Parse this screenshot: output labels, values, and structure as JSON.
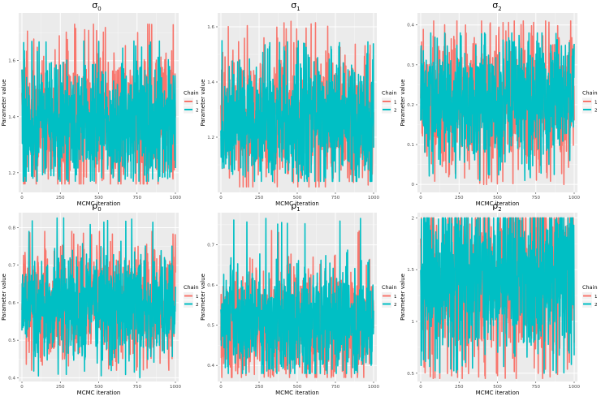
{
  "figure": {
    "legend_title": "Chain",
    "xlabel": "MCMC iteration",
    "ylabel": "Parameter value"
  },
  "chart_data": [
    {
      "type": "line",
      "title": "σ0",
      "title_base": "σ",
      "title_sub": "0",
      "xlabel": "MCMC iteration",
      "ylabel": "Parameter value",
      "x": [
        0,
        1000
      ],
      "xticks": [
        0,
        250,
        500,
        750,
        1000
      ],
      "yticks": [
        1.2,
        1.4,
        1.6
      ],
      "ylim": [
        1.13,
        1.77
      ],
      "mean": 1.39,
      "series": [
        {
          "name": "1",
          "color": "#F8766D",
          "center": 1.4,
          "spread": 0.11,
          "min": 1.16,
          "max": 1.73
        },
        {
          "name": "2",
          "color": "#00BFC4",
          "center": 1.38,
          "spread": 0.1,
          "min": 1.17,
          "max": 1.67
        }
      ]
    },
    {
      "type": "line",
      "title": "σ1",
      "title_base": "σ",
      "title_sub": "1",
      "xlabel": "MCMC iteration",
      "ylabel": "Parameter value",
      "x": [
        0,
        1000
      ],
      "xticks": [
        0,
        250,
        500,
        750,
        1000
      ],
      "yticks": [
        1.2,
        1.4,
        1.6
      ],
      "ylim": [
        1.0,
        1.65
      ],
      "mean": 1.27,
      "series": [
        {
          "name": "1",
          "color": "#F8766D",
          "center": 1.27,
          "spread": 0.11,
          "min": 1.02,
          "max": 1.62
        },
        {
          "name": "2",
          "color": "#00BFC4",
          "center": 1.26,
          "spread": 0.1,
          "min": 1.04,
          "max": 1.55
        }
      ]
    },
    {
      "type": "line",
      "title": "σ2",
      "title_base": "σ",
      "title_sub": "2",
      "xlabel": "MCMC iteration",
      "ylabel": "Parameter value",
      "x": [
        0,
        1000
      ],
      "xticks": [
        0,
        250,
        500,
        750,
        1000
      ],
      "yticks": [
        0.0,
        0.1,
        0.2,
        0.3,
        0.4
      ],
      "ylim": [
        -0.02,
        0.43
      ],
      "mean": 0.21,
      "series": [
        {
          "name": "1",
          "color": "#F8766D",
          "center": 0.21,
          "spread": 0.08,
          "min": 0.0,
          "max": 0.41
        },
        {
          "name": "2",
          "color": "#00BFC4",
          "center": 0.21,
          "spread": 0.07,
          "min": 0.01,
          "max": 0.38
        }
      ]
    },
    {
      "type": "line",
      "title": "ρ0",
      "title_base": "ρ",
      "title_sub": "0",
      "xlabel": "MCMC iteration",
      "ylabel": "Parameter value",
      "x": [
        0,
        1000
      ],
      "xticks": [
        0,
        250,
        500,
        750,
        1000
      ],
      "yticks": [
        0.4,
        0.5,
        0.6,
        0.7,
        0.8
      ],
      "ylim": [
        0.39,
        0.84
      ],
      "mean": 0.6,
      "series": [
        {
          "name": "1",
          "color": "#F8766D",
          "center": 0.6,
          "spread": 0.07,
          "min": 0.42,
          "max": 0.79
        },
        {
          "name": "2",
          "color": "#00BFC4",
          "center": 0.59,
          "spread": 0.06,
          "min": 0.4,
          "max": 0.83
        }
      ]
    },
    {
      "type": "line",
      "title": "ρ1",
      "title_base": "ρ",
      "title_sub": "1",
      "xlabel": "MCMC iteration",
      "ylabel": "Parameter value",
      "x": [
        0,
        1000
      ],
      "xticks": [
        0,
        250,
        500,
        750,
        1000
      ],
      "yticks": [
        0.4,
        0.5,
        0.6,
        0.7
      ],
      "ylim": [
        0.36,
        0.78
      ],
      "mean": 0.51,
      "series": [
        {
          "name": "1",
          "color": "#F8766D",
          "center": 0.5,
          "spread": 0.06,
          "min": 0.37,
          "max": 0.74
        },
        {
          "name": "2",
          "color": "#00BFC4",
          "center": 0.51,
          "spread": 0.06,
          "min": 0.38,
          "max": 0.77
        }
      ]
    },
    {
      "type": "line",
      "title": "ρ2",
      "title_base": "ρ",
      "title_sub": "2",
      "xlabel": "MCMC iteration",
      "ylabel": "Parameter value",
      "x": [
        0,
        1000
      ],
      "xticks": [
        0,
        250,
        500,
        750,
        1000
      ],
      "yticks": [
        0.5,
        1.0,
        1.5,
        2.0
      ],
      "ylim": [
        0.42,
        2.05
      ],
      "mean": 1.4,
      "series": [
        {
          "name": "1",
          "color": "#F8766D",
          "center": 1.45,
          "spread": 0.38,
          "min": 0.45,
          "max": 2.0
        },
        {
          "name": "2",
          "color": "#00BFC4",
          "center": 1.45,
          "spread": 0.35,
          "min": 0.5,
          "max": 2.0
        }
      ]
    }
  ]
}
